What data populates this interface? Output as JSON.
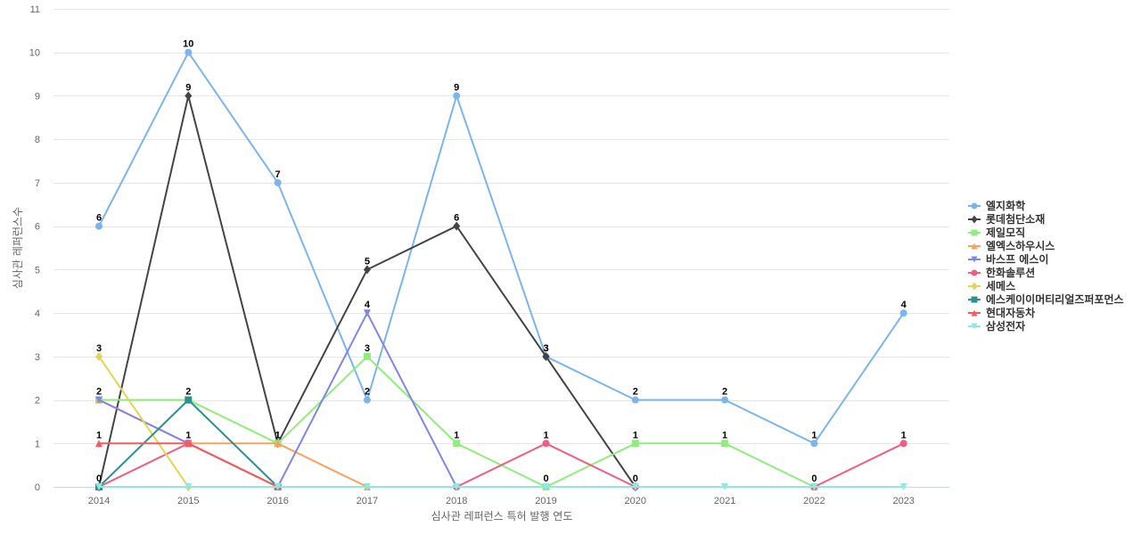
{
  "chart_data": {
    "type": "line",
    "xlabel": "심사관 레퍼런스 특허 발행 연도",
    "ylabel": "심사관 레퍼런스수",
    "x": [
      "2014",
      "2015",
      "2016",
      "2017",
      "2018",
      "2019",
      "2020",
      "2021",
      "2022",
      "2023"
    ],
    "ylim": [
      0,
      11
    ],
    "yticks": [
      0,
      1,
      2,
      3,
      4,
      5,
      6,
      7,
      8,
      9,
      10,
      11
    ],
    "grid": true,
    "legend_position": "right",
    "series": [
      {
        "name": "엘지화학",
        "color": "#7cb5ec",
        "marker": "circle",
        "values": [
          6,
          10,
          7,
          2,
          9,
          3,
          2,
          2,
          1,
          4
        ],
        "labels": [
          6,
          10,
          7,
          2,
          9,
          3,
          2,
          2,
          1,
          4
        ]
      },
      {
        "name": "롯데첨단소재",
        "color": "#434348",
        "marker": "diamond",
        "values": [
          0,
          9,
          1,
          5,
          6,
          3,
          0,
          null,
          null,
          null
        ],
        "labels": [
          0,
          9,
          1,
          5,
          6,
          3,
          0,
          null,
          null,
          null
        ]
      },
      {
        "name": "제일모직",
        "color": "#90ed7d",
        "marker": "square",
        "values": [
          2,
          2,
          1,
          3,
          1,
          0,
          1,
          1,
          0,
          null
        ],
        "labels": [
          2,
          2,
          1,
          3,
          1,
          0,
          1,
          1,
          0,
          null
        ]
      },
      {
        "name": "엘엑스하우시스",
        "color": "#f7a35c",
        "marker": "triangle",
        "values": [
          2,
          1,
          1,
          0,
          null,
          null,
          null,
          null,
          null,
          null
        ],
        "labels": [
          null,
          null,
          null,
          null,
          null,
          null,
          null,
          null,
          null,
          null
        ]
      },
      {
        "name": "바스프 에스이",
        "color": "#8085e9",
        "marker": "triangle-down",
        "values": [
          2,
          1,
          0,
          4,
          0,
          null,
          null,
          null,
          null,
          null
        ],
        "labels": [
          null,
          null,
          null,
          4,
          null,
          null,
          null,
          null,
          null,
          null
        ]
      },
      {
        "name": "한화솔루션",
        "color": "#f15c80",
        "marker": "circle",
        "values": [
          0,
          1,
          0,
          null,
          0,
          1,
          0,
          null,
          0,
          1
        ],
        "labels": [
          null,
          null,
          null,
          null,
          null,
          1,
          null,
          null,
          null,
          1
        ]
      },
      {
        "name": "세메스",
        "color": "#e4d354",
        "marker": "diamond",
        "values": [
          3,
          0,
          null,
          null,
          null,
          null,
          null,
          null,
          null,
          null
        ],
        "labels": [
          3,
          null,
          null,
          null,
          null,
          null,
          null,
          null,
          null,
          null
        ]
      },
      {
        "name": "에스케이이머티리얼즈퍼포먼스",
        "color": "#2b908f",
        "marker": "square",
        "values": [
          0,
          2,
          0,
          null,
          null,
          null,
          null,
          null,
          null,
          null
        ],
        "labels": [
          null,
          null,
          null,
          null,
          null,
          null,
          null,
          null,
          null,
          null
        ]
      },
      {
        "name": "현대자동차",
        "color": "#f45b5b",
        "marker": "triangle",
        "values": [
          1,
          1,
          0,
          null,
          null,
          null,
          null,
          null,
          null,
          null
        ],
        "labels": [
          1,
          1,
          null,
          null,
          null,
          null,
          null,
          null,
          null,
          null
        ]
      },
      {
        "name": "삼성전자",
        "color": "#91e8e1",
        "marker": "triangle-down",
        "values": [
          0,
          0,
          0,
          0,
          0,
          0,
          0,
          0,
          0,
          0
        ],
        "labels": [
          null,
          null,
          null,
          null,
          null,
          null,
          null,
          null,
          null,
          null
        ]
      }
    ]
  }
}
